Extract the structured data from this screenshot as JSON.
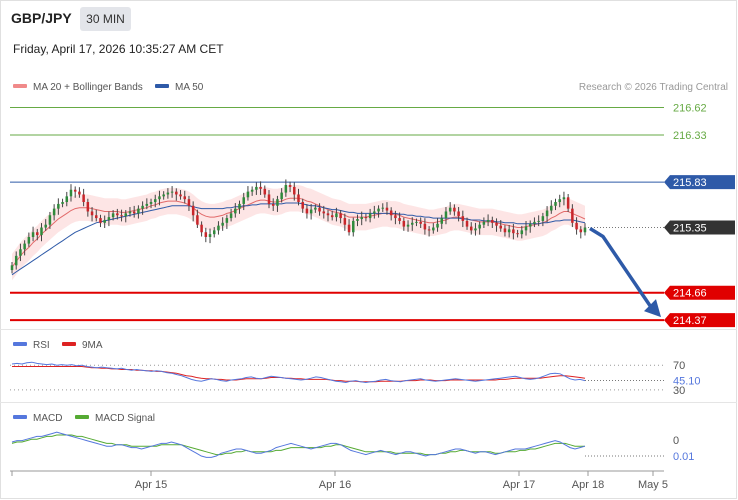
{
  "header": {
    "symbol": "GBP/JPY",
    "timeframe": "30 MIN",
    "timestamp": "Friday, April 17, 2026 10:35:27 AM CET"
  },
  "legend": {
    "ma20": "MA 20 + Bollinger Bands",
    "ma50": "MA 50",
    "credit": "Research © 2026 Trading Central",
    "rsi": "RSI",
    "rsi_ma": "9MA",
    "macd": "MACD",
    "macd_signal": "MACD Signal"
  },
  "colors": {
    "bull": "#2f8a3c",
    "bear": "#c8262b",
    "ma20": "#e26a6a",
    "ma50": "#2e5aa8",
    "band": "#fde2e2",
    "resistance": "#2e5aa8",
    "support": "#e00000",
    "target": "#66aa44",
    "arrow": "#2e5aa8",
    "rsi": "#5577dd",
    "rsi_ma": "#dd2222",
    "macd": "#5577dd",
    "macd_signal": "#55aa33"
  },
  "chart_data": [
    {
      "type": "candlestick",
      "x_labels": [
        "Apr 15",
        "Apr 16",
        "Apr 17",
        "Apr 18",
        "May 5"
      ],
      "ylim": [
        214.35,
        216.7
      ],
      "current_price": "215.35",
      "levels": [
        {
          "label": "216.62",
          "value": 216.62,
          "kind": "target"
        },
        {
          "label": "216.33",
          "value": 216.33,
          "kind": "target"
        },
        {
          "label": "215.83",
          "value": 215.83,
          "kind": "resistance"
        },
        {
          "label": "214.66",
          "value": 214.66,
          "kind": "support"
        },
        {
          "label": "214.37",
          "value": 214.37,
          "kind": "support"
        }
      ],
      "close": [
        214.95,
        215.05,
        215.12,
        215.18,
        215.25,
        215.3,
        215.27,
        215.35,
        215.38,
        215.48,
        215.55,
        215.6,
        215.62,
        215.68,
        215.75,
        215.73,
        215.7,
        215.62,
        215.52,
        215.48,
        215.45,
        215.4,
        215.43,
        215.46,
        215.5,
        215.48,
        215.47,
        215.5,
        215.52,
        215.5,
        215.55,
        215.58,
        215.6,
        215.62,
        215.65,
        215.68,
        215.7,
        215.72,
        215.73,
        215.7,
        215.68,
        215.65,
        215.58,
        215.48,
        215.38,
        215.3,
        215.25,
        215.28,
        215.32,
        215.37,
        215.4,
        215.45,
        215.5,
        215.55,
        215.6,
        215.67,
        215.73,
        215.75,
        215.78,
        215.76,
        215.7,
        215.6,
        215.58,
        215.65,
        215.72,
        215.8,
        215.78,
        215.7,
        215.62,
        215.55,
        215.5,
        215.54,
        215.56,
        215.52,
        215.5,
        215.48,
        215.46,
        215.5,
        215.45,
        215.38,
        215.3,
        215.42,
        215.44,
        215.46,
        215.45,
        215.5,
        215.52,
        215.55,
        215.56,
        215.53,
        215.48,
        215.45,
        215.42,
        215.36,
        215.38,
        215.4,
        215.41,
        215.39,
        215.33,
        215.32,
        215.35,
        215.39,
        215.45,
        215.52,
        215.56,
        215.52,
        215.47,
        215.42,
        215.36,
        215.32,
        215.34,
        215.38,
        215.41,
        215.43,
        215.4,
        215.37,
        215.34,
        215.3,
        215.33,
        215.29,
        215.28,
        215.32,
        215.36,
        215.39,
        215.41,
        215.42,
        215.47,
        215.53,
        215.58,
        215.62,
        215.65,
        215.67,
        215.55,
        215.4,
        215.33,
        215.3,
        215.35
      ],
      "ma20": [
        214.93,
        214.99,
        215.05,
        215.1,
        215.14,
        215.19,
        215.23,
        215.28,
        215.32,
        215.36,
        215.4,
        215.44,
        215.47,
        215.5,
        215.53,
        215.55,
        215.56,
        215.56,
        215.56,
        215.55,
        215.54,
        215.53,
        215.52,
        215.52,
        215.52,
        215.52,
        215.51,
        215.51,
        215.52,
        215.53,
        215.54,
        215.55,
        215.56,
        215.58,
        215.59,
        215.61,
        215.62,
        215.63,
        215.63,
        215.63,
        215.62,
        215.61,
        215.59,
        215.56,
        215.52,
        215.49,
        215.47,
        215.46,
        215.46,
        215.47,
        215.48,
        215.5,
        215.51,
        215.53,
        215.55,
        215.57,
        215.59,
        215.61,
        215.63,
        215.64,
        215.64,
        215.63,
        215.62,
        215.62,
        215.63,
        215.65,
        215.66,
        215.66,
        215.66,
        215.65,
        215.63,
        215.62,
        215.6,
        215.58,
        215.56,
        215.54,
        215.52,
        215.51,
        215.5,
        215.48,
        215.46,
        215.46,
        215.46,
        215.46,
        215.46,
        215.47,
        215.48,
        215.49,
        215.5,
        215.5,
        215.49,
        215.49,
        215.48,
        215.46,
        215.45,
        215.44,
        215.43,
        215.42,
        215.41,
        215.4,
        215.4,
        215.41,
        215.42,
        215.43,
        215.45,
        215.46,
        215.46,
        215.45,
        215.44,
        215.43,
        215.42,
        215.41,
        215.41,
        215.41,
        215.41,
        215.4,
        215.39,
        215.38,
        215.37,
        215.36,
        215.35,
        215.35,
        215.36,
        215.37,
        215.38,
        215.39,
        215.4,
        215.42,
        215.45,
        215.47,
        215.5,
        215.52,
        215.52,
        215.5,
        215.48,
        215.46,
        215.44
      ],
      "ma50": [
        214.85,
        214.88,
        214.91,
        214.94,
        214.97,
        215.0,
        215.03,
        215.06,
        215.09,
        215.12,
        215.15,
        215.18,
        215.21,
        215.24,
        215.27,
        215.3,
        215.32,
        215.34,
        215.36,
        215.38,
        215.4,
        215.41,
        215.42,
        215.43,
        215.44,
        215.45,
        215.46,
        215.47,
        215.48,
        215.49,
        215.5,
        215.51,
        215.52,
        215.53,
        215.54,
        215.55,
        215.56,
        215.57,
        215.58,
        215.58,
        215.58,
        215.58,
        215.58,
        215.57,
        215.56,
        215.55,
        215.55,
        215.55,
        215.55,
        215.55,
        215.55,
        215.56,
        215.56,
        215.57,
        215.57,
        215.58,
        215.58,
        215.59,
        215.59,
        215.6,
        215.6,
        215.6,
        215.6,
        215.6,
        215.6,
        215.61,
        215.61,
        215.61,
        215.61,
        215.6,
        215.59,
        215.58,
        215.58,
        215.57,
        215.56,
        215.55,
        215.54,
        215.54,
        215.53,
        215.52,
        215.51,
        215.51,
        215.5,
        215.5,
        215.5,
        215.5,
        215.5,
        215.5,
        215.5,
        215.5,
        215.5,
        215.5,
        215.49,
        215.49,
        215.48,
        215.48,
        215.47,
        215.47,
        215.46,
        215.46,
        215.45,
        215.45,
        215.45,
        215.45,
        215.45,
        215.45,
        215.45,
        215.44,
        215.44,
        215.43,
        215.43,
        215.43,
        215.42,
        215.42,
        215.42,
        215.41,
        215.41,
        215.4,
        215.4,
        215.4,
        215.39,
        215.39,
        215.39,
        215.39,
        215.39,
        215.39,
        215.4,
        215.4,
        215.41,
        215.42,
        215.42,
        215.43,
        215.43,
        215.43,
        215.42,
        215.41,
        215.4
      ]
    },
    {
      "type": "line",
      "title": "RSI",
      "levels": [
        {
          "label": "70",
          "value": 70
        },
        {
          "label": "30",
          "value": 30
        }
      ],
      "current_value": "45.10",
      "ylim": [
        20,
        85
      ],
      "rsi": [
        72,
        73,
        72,
        74,
        75,
        73,
        72,
        71,
        72,
        70,
        71,
        70,
        71,
        69,
        70,
        68,
        67,
        66,
        67,
        66,
        65,
        64,
        65,
        63,
        62,
        63,
        62,
        61,
        60,
        61,
        60,
        58,
        57,
        55,
        53,
        50,
        47,
        45,
        44,
        46,
        48,
        47,
        45,
        44,
        46,
        47,
        48,
        50,
        51,
        49,
        48,
        50,
        52,
        51,
        50,
        49,
        48,
        47,
        46,
        47,
        49,
        51,
        50,
        48,
        46,
        44,
        43,
        42,
        44,
        45,
        43,
        42,
        43,
        44,
        46,
        47,
        45,
        44,
        43,
        45,
        46,
        47,
        48,
        46,
        45,
        44,
        45,
        46,
        47,
        48,
        47,
        46,
        45,
        44,
        45,
        46,
        47,
        48,
        49,
        50,
        51,
        52,
        50,
        48,
        47,
        48,
        50,
        53,
        56,
        57,
        56,
        52,
        48,
        46,
        47,
        45
      ],
      "ma9": [
        68,
        68,
        68,
        68,
        68,
        68,
        68,
        68,
        68,
        68,
        68,
        68,
        68,
        68,
        68,
        67,
        66,
        66,
        65,
        65,
        64,
        64,
        63,
        63,
        63,
        62,
        62,
        61,
        61,
        60,
        60,
        59,
        58,
        57,
        55,
        53,
        52,
        50,
        49,
        48,
        48,
        47,
        47,
        46,
        46,
        46,
        47,
        48,
        48,
        48,
        48,
        49,
        50,
        50,
        50,
        49,
        49,
        48,
        48,
        47,
        47,
        47,
        47,
        47,
        46,
        45,
        45,
        44,
        44,
        44,
        43,
        43,
        43,
        43,
        44,
        44,
        44,
        44,
        44,
        45,
        45,
        45,
        46,
        46,
        46,
        45,
        45,
        45,
        46,
        46,
        46,
        46,
        46,
        46,
        46,
        46,
        46,
        46,
        47,
        47,
        48,
        49,
        49,
        49,
        49,
        49,
        49,
        50,
        51,
        52,
        53,
        53,
        52,
        51,
        50,
        49
      ]
    },
    {
      "type": "line",
      "title": "MACD",
      "levels": [
        {
          "label": "0",
          "value": 0
        }
      ],
      "current_value": "0.01",
      "ylim": [
        -0.18,
        0.12
      ],
      "macd": [
        0.02,
        0.03,
        0.03,
        0.04,
        0.05,
        0.06,
        0.06,
        0.07,
        0.08,
        0.09,
        0.08,
        0.07,
        0.06,
        0.05,
        0.04,
        0.03,
        0.02,
        0.01,
        0.0,
        -0.01,
        -0.01,
        0.0,
        0.0,
        -0.01,
        -0.02,
        -0.02,
        -0.03,
        -0.02,
        -0.01,
        0.0,
        0.01,
        0.01,
        0.02,
        0.01,
        0.0,
        -0.02,
        -0.04,
        -0.06,
        -0.08,
        -0.09,
        -0.09,
        -0.08,
        -0.06,
        -0.05,
        -0.04,
        -0.03,
        -0.03,
        -0.04,
        -0.05,
        -0.06,
        -0.06,
        -0.05,
        -0.04,
        -0.02,
        -0.01,
        0.0,
        0.01,
        0.0,
        -0.01,
        -0.02,
        -0.03,
        -0.02,
        -0.01,
        0.0,
        0.01,
        0.01,
        0.0,
        -0.02,
        -0.04,
        -0.05,
        -0.06,
        -0.07,
        -0.06,
        -0.05,
        -0.04,
        -0.05,
        -0.06,
        -0.07,
        -0.06,
        -0.05,
        -0.05,
        -0.06,
        -0.07,
        -0.08,
        -0.07,
        -0.07,
        -0.06,
        -0.05,
        -0.04,
        -0.03,
        -0.03,
        -0.04,
        -0.05,
        -0.06,
        -0.05,
        -0.05,
        -0.06,
        -0.07,
        -0.06,
        -0.05,
        -0.04,
        -0.03,
        -0.03,
        -0.03,
        -0.02,
        -0.01,
        0.0,
        0.01,
        0.02,
        0.03,
        0.02,
        0.0,
        -0.02,
        -0.03,
        -0.02,
        -0.01
      ],
      "signal": [
        0.01,
        0.02,
        0.02,
        0.03,
        0.04,
        0.04,
        0.05,
        0.06,
        0.06,
        0.07,
        0.07,
        0.07,
        0.07,
        0.06,
        0.06,
        0.05,
        0.04,
        0.03,
        0.02,
        0.01,
        0.01,
        0.0,
        0.0,
        0.0,
        -0.01,
        -0.01,
        -0.01,
        -0.01,
        -0.01,
        -0.01,
        0.0,
        0.0,
        0.0,
        0.0,
        0.0,
        -0.01,
        -0.02,
        -0.03,
        -0.04,
        -0.05,
        -0.06,
        -0.07,
        -0.07,
        -0.06,
        -0.06,
        -0.05,
        -0.05,
        -0.04,
        -0.05,
        -0.05,
        -0.05,
        -0.05,
        -0.05,
        -0.04,
        -0.04,
        -0.03,
        -0.02,
        -0.02,
        -0.02,
        -0.02,
        -0.02,
        -0.02,
        -0.02,
        -0.01,
        -0.01,
        0.0,
        0.0,
        -0.01,
        -0.02,
        -0.03,
        -0.04,
        -0.05,
        -0.05,
        -0.05,
        -0.05,
        -0.05,
        -0.05,
        -0.06,
        -0.06,
        -0.06,
        -0.06,
        -0.06,
        -0.06,
        -0.07,
        -0.07,
        -0.07,
        -0.06,
        -0.06,
        -0.05,
        -0.05,
        -0.04,
        -0.04,
        -0.05,
        -0.05,
        -0.05,
        -0.05,
        -0.05,
        -0.06,
        -0.06,
        -0.05,
        -0.05,
        -0.05,
        -0.04,
        -0.04,
        -0.03,
        -0.03,
        -0.02,
        -0.01,
        0.0,
        0.01,
        0.01,
        0.01,
        0.0,
        -0.01,
        -0.01,
        -0.01
      ]
    }
  ]
}
